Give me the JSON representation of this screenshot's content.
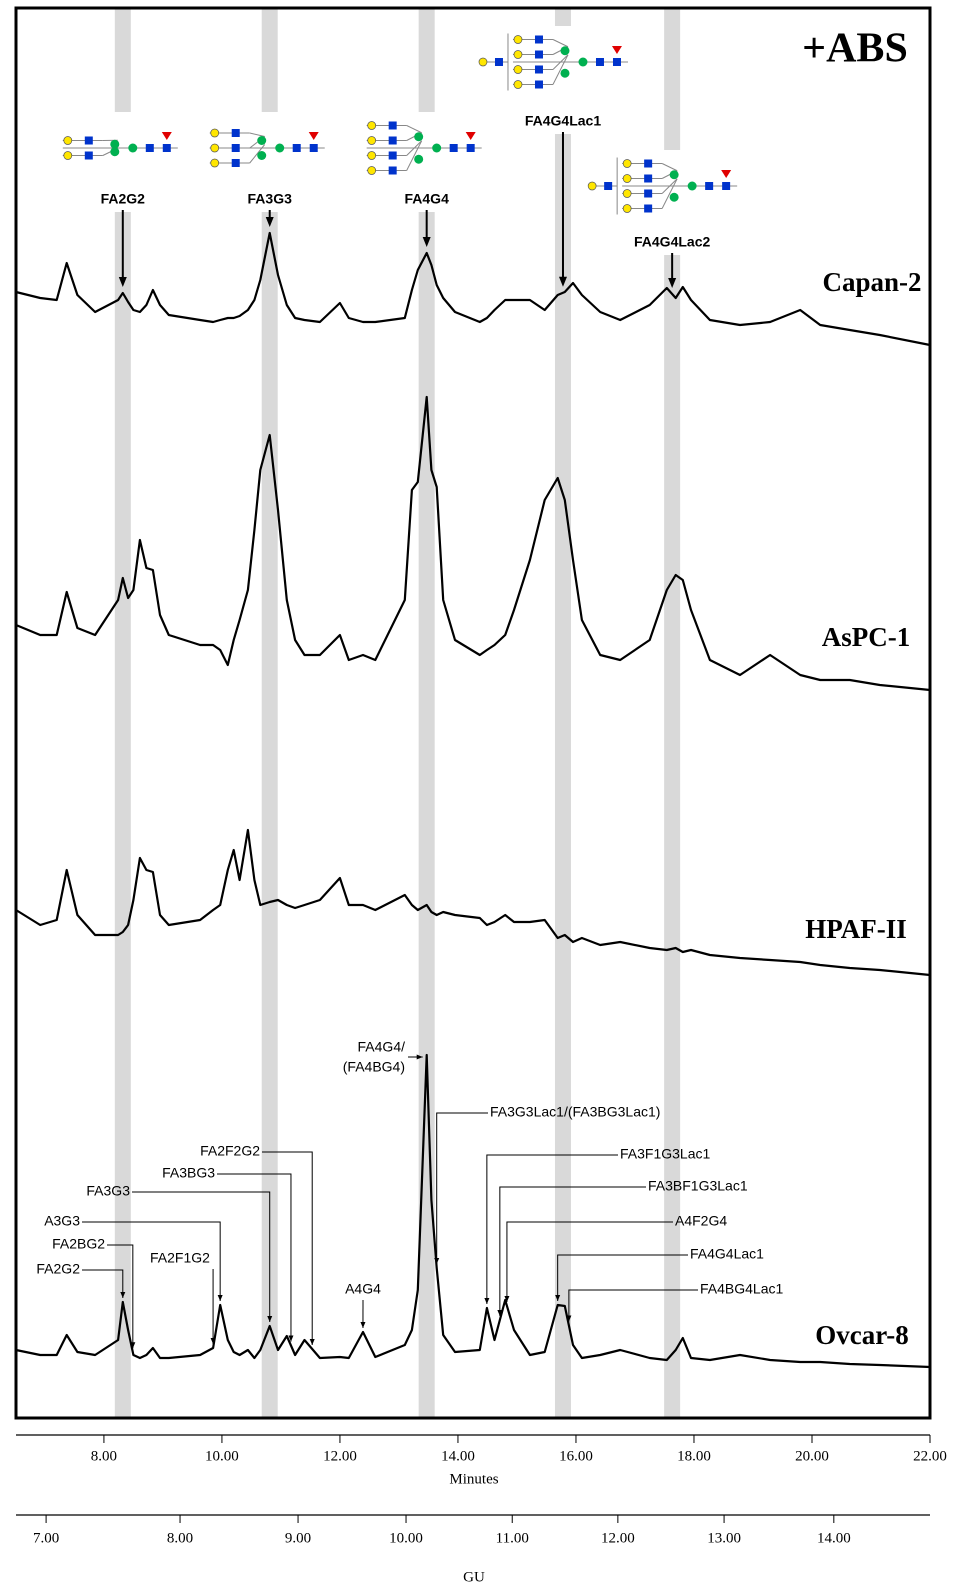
{
  "chart_data": {
    "type": "line",
    "title": "+ABS",
    "xlabel": "Minutes",
    "x2label": "GU",
    "xlim": [
      6.51,
      22
    ],
    "xticks": [
      {
        "value": 8,
        "label": "8.00"
      },
      {
        "value": 10,
        "label": "10.00"
      },
      {
        "value": 12,
        "label": "12.00"
      },
      {
        "value": 14,
        "label": "14.00"
      },
      {
        "value": 16,
        "label": "16.00"
      },
      {
        "value": 18,
        "label": "18.00"
      },
      {
        "value": 20,
        "label": "20.00"
      },
      {
        "value": 22,
        "label": "22.00"
      }
    ],
    "x2ticks": [
      {
        "value": 7,
        "label": "7.00"
      },
      {
        "value": 8,
        "label": "8.00"
      },
      {
        "value": 9,
        "label": "9.00"
      },
      {
        "value": 10,
        "label": "10.00"
      },
      {
        "value": 11,
        "label": "11.00"
      },
      {
        "value": 12,
        "label": "12.00"
      },
      {
        "value": 13,
        "label": "13.00"
      },
      {
        "value": 14,
        "label": "14.00"
      }
    ],
    "gu_minutes": [
      7.02,
      9.29,
      11.29,
      13.12,
      14.92,
      16.71,
      18.51,
      20.37
    ],
    "highlights": [
      {
        "label": "FA2G2",
        "x": 8.32
      },
      {
        "label": "FA3G3",
        "x": 10.81
      },
      {
        "label": "FA4G4",
        "x": 13.47
      },
      {
        "label": "FA4G4Lac1",
        "x": 15.78
      },
      {
        "label": "FA4G4Lac2",
        "x": 17.63
      }
    ],
    "x": [
      6.51,
      6.92,
      7.2,
      7.37,
      7.55,
      7.85,
      8.24,
      8.32,
      8.41,
      8.5,
      8.61,
      8.72,
      8.83,
      8.95,
      9.1,
      9.63,
      9.85,
      9.97,
      10.1,
      10.2,
      10.3,
      10.44,
      10.55,
      10.65,
      10.81,
      10.95,
      11.1,
      11.24,
      11.4,
      11.66,
      12.0,
      12.15,
      12.39,
      12.6,
      13.1,
      13.22,
      13.32,
      13.47,
      13.55,
      13.64,
      13.75,
      13.95,
      14.37,
      14.49,
      14.62,
      14.8,
      14.95,
      15.22,
      15.47,
      15.69,
      15.81,
      15.95,
      16.1,
      16.41,
      16.75,
      17.25,
      17.54,
      17.69,
      17.81,
      17.95,
      18.27,
      18.78,
      19.29,
      19.8,
      20.14,
      20.64,
      21.15,
      22.0
    ],
    "series": [
      {
        "name": "Capan-2",
        "color": "#000000",
        "values": [
          58,
          52,
          50,
          87,
          55,
          38,
          50,
          57,
          48,
          40,
          38,
          45,
          60,
          45,
          35,
          30,
          28,
          30,
          32,
          32,
          34,
          40,
          50,
          70,
          117,
          75,
          45,
          32,
          30,
          28,
          47,
          32,
          28,
          28,
          32,
          60,
          80,
          97,
          85,
          65,
          52,
          38,
          28,
          32,
          40,
          50,
          50,
          50,
          40,
          55,
          58,
          67,
          55,
          38,
          30,
          45,
          62,
          52,
          63,
          50,
          30,
          25,
          28,
          40,
          25,
          20,
          15,
          5
        ]
      },
      {
        "name": "AsPC-1",
        "color": "#000000",
        "values": [
          75,
          65,
          65,
          108,
          72,
          65,
          100,
          122,
          102,
          110,
          160,
          132,
          130,
          85,
          65,
          55,
          55,
          50,
          35,
          60,
          80,
          110,
          170,
          230,
          265,
          190,
          100,
          60,
          45,
          45,
          65,
          40,
          45,
          40,
          100,
          210,
          218,
          303,
          230,
          213,
          100,
          60,
          45,
          50,
          55,
          65,
          90,
          140,
          200,
          222,
          200,
          140,
          80,
          45,
          40,
          60,
          110,
          125,
          120,
          90,
          40,
          25,
          45,
          25,
          20,
          20,
          15,
          10
        ]
      },
      {
        "name": "HPAF-II",
        "color": "#000000",
        "values": [
          80,
          65,
          70,
          120,
          75,
          55,
          55,
          58,
          65,
          90,
          132,
          120,
          118,
          75,
          65,
          70,
          80,
          85,
          120,
          140,
          110,
          160,
          110,
          85,
          88,
          90,
          85,
          82,
          85,
          90,
          112,
          85,
          85,
          80,
          95,
          85,
          80,
          85,
          78,
          75,
          78,
          75,
          72,
          65,
          68,
          75,
          68,
          68,
          70,
          52,
          55,
          48,
          52,
          45,
          48,
          42,
          40,
          42,
          38,
          40,
          35,
          32,
          30,
          28,
          25,
          22,
          20,
          15
        ]
      },
      {
        "name": "Ovcar-8",
        "color": "#000000",
        "values": [
          25,
          20,
          20,
          40,
          23,
          20,
          35,
          73,
          45,
          20,
          17,
          20,
          27,
          17,
          17,
          20,
          27,
          70,
          35,
          23,
          20,
          25,
          17,
          25,
          49,
          25,
          39,
          20,
          35,
          17,
          18,
          17,
          43,
          18,
          30,
          45,
          85,
          320,
          175,
          107,
          40,
          23,
          25,
          67,
          35,
          75,
          45,
          20,
          23,
          70,
          69,
          30,
          17,
          20,
          25,
          17,
          15,
          25,
          37,
          17,
          15,
          20,
          15,
          13,
          13,
          11,
          10,
          8
        ]
      }
    ],
    "peak_labels": [
      {
        "label": "FA2G2",
        "x": 8.32
      },
      {
        "label": "FA2BG2",
        "x": 8.49
      },
      {
        "label": "A3G3",
        "x": 9.97
      },
      {
        "label": "FA2F1G2",
        "x": 9.85
      },
      {
        "label": "FA3G3",
        "x": 10.81
      },
      {
        "label": "FA3BG3",
        "x": 11.17
      },
      {
        "label": "FA2F2G2",
        "x": 11.53
      },
      {
        "label": "A4G4",
        "x": 12.39
      },
      {
        "label": [
          "FA4G4/",
          "(FA4BG4)"
        ],
        "x": 13.47
      },
      {
        "label": "FA3G3Lac1/(FA3BG3Lac1)",
        "x": 13.64
      },
      {
        "label": "FA3F1G3Lac1",
        "x": 14.49
      },
      {
        "label": "FA3BF1G3Lac1",
        "x": 14.71
      },
      {
        "label": "A4F2G4",
        "x": 14.83
      },
      {
        "label": "FA4G4Lac1",
        "x": 15.69
      },
      {
        "label": "FA4BG4Lac1",
        "x": 15.88
      }
    ]
  }
}
